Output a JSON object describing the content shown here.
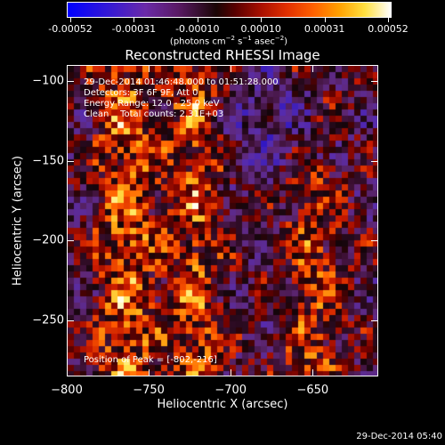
{
  "colorbar": {
    "ticks": [
      "-0.00052",
      "-0.00031",
      "-0.00010",
      "0.00010",
      "0.00031",
      "0.00052"
    ],
    "units": "(photons cm-2 s-1 asec-2)"
  },
  "title": "Reconstructed RHESSI Image",
  "annotations": {
    "time_range": "29-Dec-2014 01:46:48.000 to 01:51:28.000",
    "detectors": "Detectors: 3F 6F 9F, Att 0",
    "energy_range": "Energy Range: 12.0 - 25.0 keV",
    "clean_counts": "Clean    Total counts: 2.31E+03",
    "peak": "Position of Peak = [-802,-216]"
  },
  "x_axis": {
    "title": "Heliocentric X (arcsec)",
    "ticks": [
      "-800",
      "-750",
      "-700",
      "-650"
    ]
  },
  "y_axis": {
    "title": "Heliocentric Y (arcsec)",
    "ticks": [
      "-100",
      "-150",
      "-200",
      "-250"
    ]
  },
  "footer_date": "29-Dec-2014 05:40",
  "chart_data": {
    "type": "heatmap",
    "title": "Reconstructed RHESSI Image",
    "xlabel": "Heliocentric X (arcsec)",
    "ylabel": "Heliocentric Y (arcsec)",
    "xlim": [
      -800,
      -610
    ],
    "ylim": [
      -285,
      -90
    ],
    "color_scale_range": [
      -0.00052,
      0.00052
    ],
    "colormap": "blue-purple-red-yellow-white",
    "peak_position": [
      -802,
      -216
    ],
    "grid": false
  }
}
